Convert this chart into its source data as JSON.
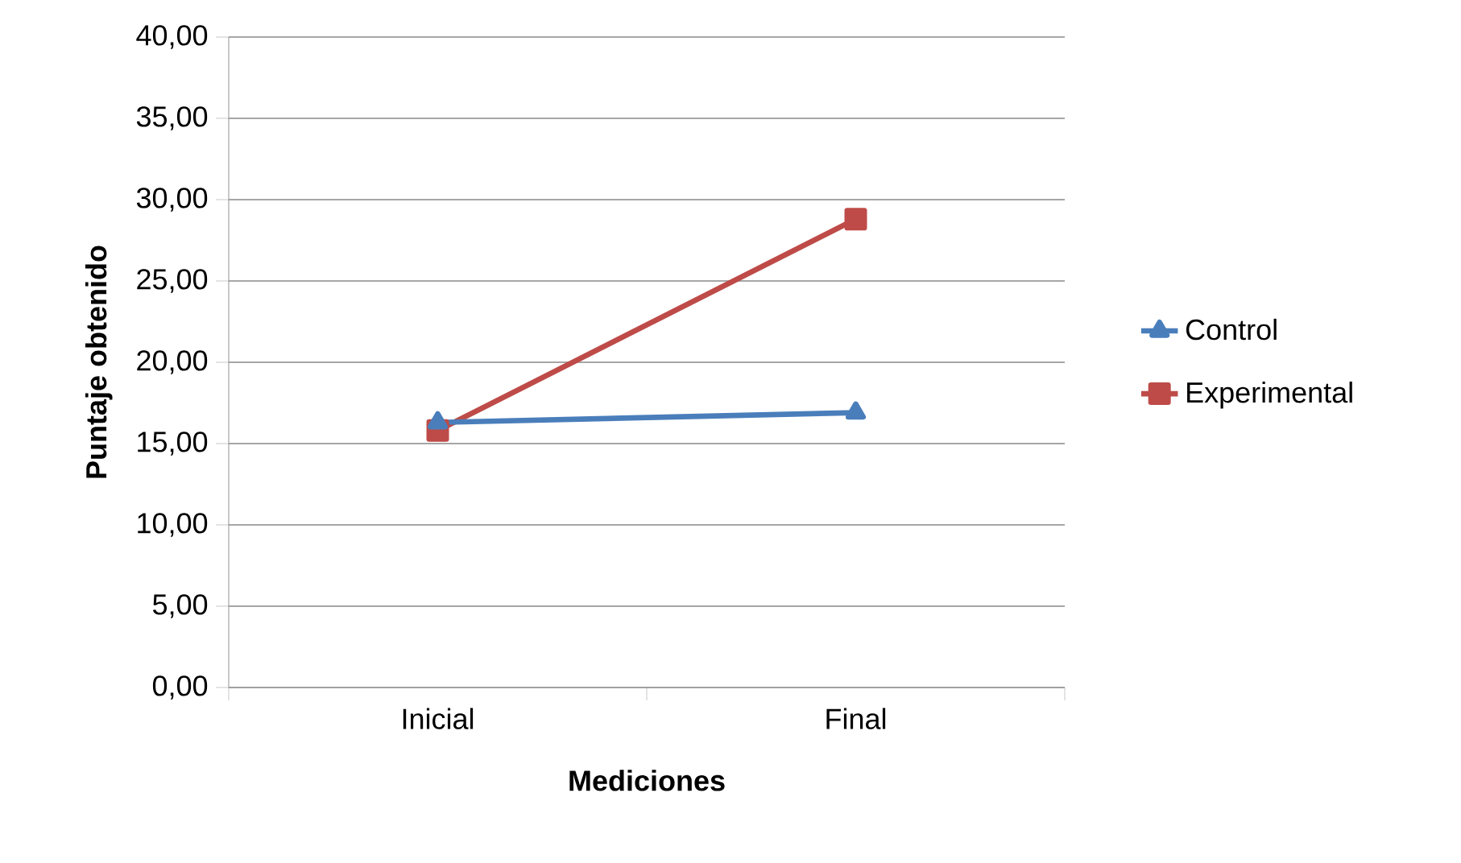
{
  "chart_data": {
    "type": "line",
    "xlabel": "Mediciones",
    "ylabel": "Puntaje obtenido",
    "categories": [
      "Inicial",
      "Final"
    ],
    "series": [
      {
        "name": "Control",
        "color": "#4a7ebb",
        "values": [
          16.3,
          16.9
        ],
        "marker": "triangle"
      },
      {
        "name": "Experimental",
        "color": "#be4b48",
        "values": [
          15.8,
          28.8
        ],
        "marker": "square"
      }
    ],
    "ylim": [
      0,
      40
    ],
    "yticks": [
      {
        "value": 0,
        "label": "0,00"
      },
      {
        "value": 5,
        "label": "5,00"
      },
      {
        "value": 10,
        "label": "10,00"
      },
      {
        "value": 15,
        "label": "15,00"
      },
      {
        "value": 20,
        "label": "20,00"
      },
      {
        "value": 25,
        "label": "25,00"
      },
      {
        "value": 30,
        "label": "30,00"
      },
      {
        "value": 35,
        "label": "35,00"
      },
      {
        "value": 40,
        "label": "40,00"
      }
    ],
    "grid": "y",
    "legend": "right",
    "line_style": "solid"
  }
}
